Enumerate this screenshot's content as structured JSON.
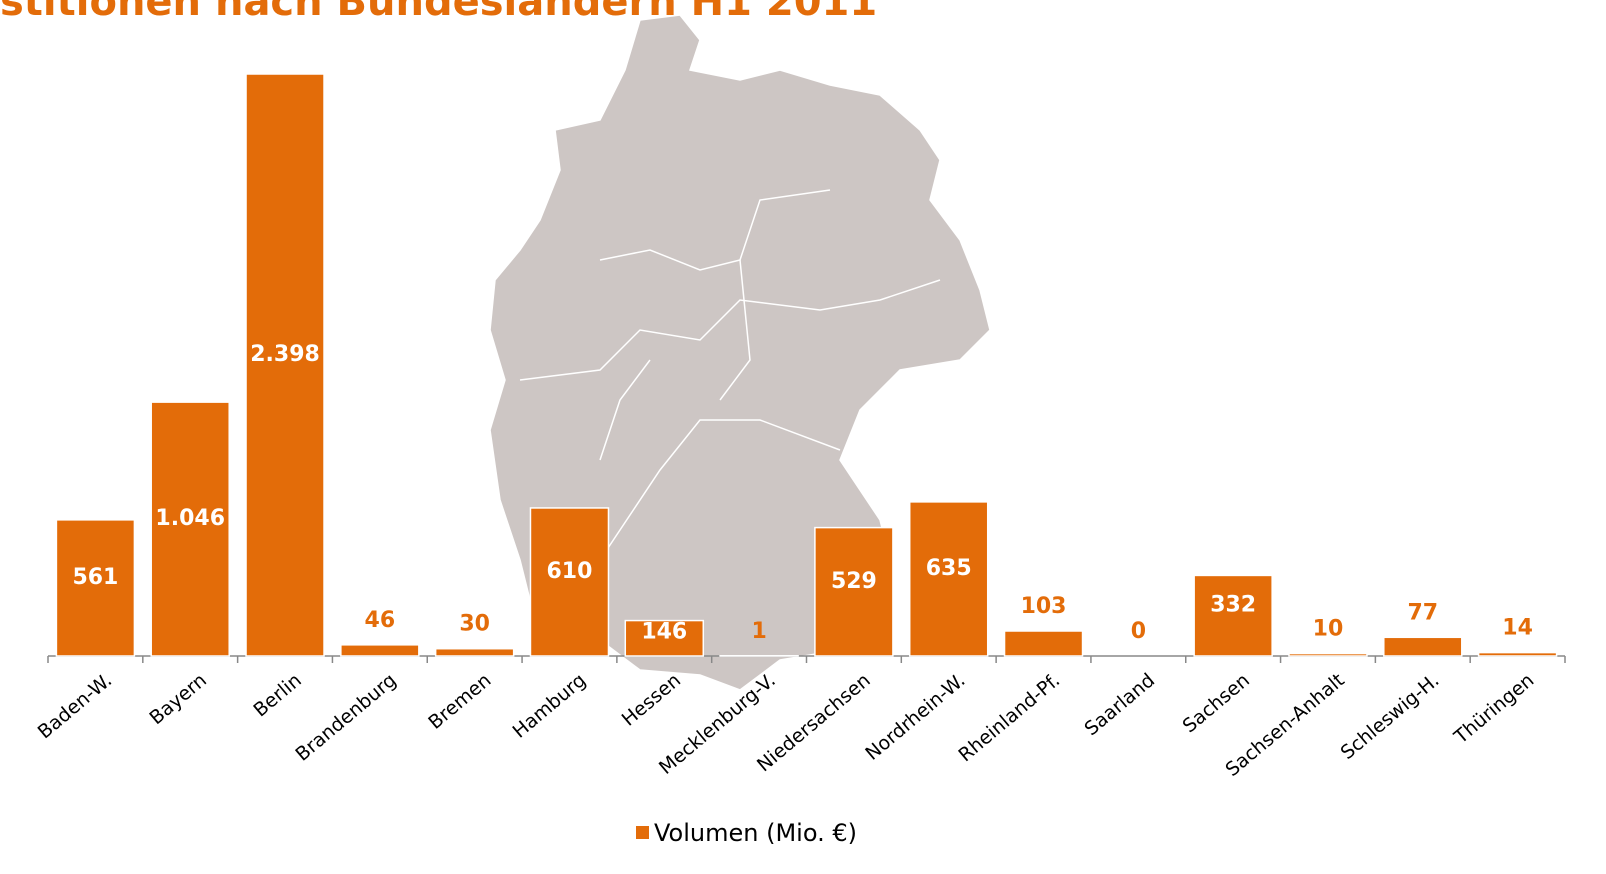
{
  "chart_data": {
    "type": "bar",
    "title": "stitionen nach Bundesländern H1 2011",
    "categories": [
      "Baden-W.",
      "Bayern",
      "Berlin",
      "Brandenburg",
      "Bremen",
      "Hamburg",
      "Hessen",
      "Mecklenburg-V.",
      "Niedersachsen",
      "Nordrhein-W.",
      "Rheinland-Pf.",
      "Saarland",
      "Sachsen",
      "Sachsen-Anhalt",
      "Schleswig-H.",
      "Thüringen"
    ],
    "series": [
      {
        "name": "Volumen (Mio. €)",
        "color": "#e36c09",
        "values": [
          561,
          1046,
          2398,
          46,
          30,
          610,
          146,
          1,
          529,
          635,
          103,
          0,
          332,
          10,
          77,
          14
        ],
        "value_labels": [
          "561",
          "1.046",
          "2.398",
          "46",
          "30",
          "610",
          "146",
          "1",
          "529",
          "635",
          "103",
          "0",
          "332",
          "10",
          "77",
          "14"
        ]
      }
    ],
    "ylim": [
      0,
      2400
    ]
  }
}
